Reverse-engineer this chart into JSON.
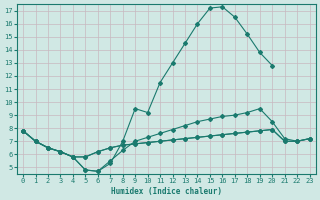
{
  "xlabel": "Humidex (Indice chaleur)",
  "bg_color": "#d0e8e4",
  "line_color": "#1a7a6e",
  "grid_color": "#c0d8d4",
  "xlim": [
    -0.5,
    23.5
  ],
  "ylim": [
    4.5,
    17.5
  ],
  "xticks": [
    0,
    1,
    2,
    3,
    4,
    5,
    6,
    7,
    8,
    9,
    10,
    11,
    12,
    13,
    14,
    15,
    16,
    17,
    18,
    19,
    20,
    21,
    22,
    23
  ],
  "yticks": [
    5,
    6,
    7,
    8,
    9,
    10,
    11,
    12,
    13,
    14,
    15,
    16,
    17
  ],
  "line1_x": [
    0,
    1,
    2,
    3,
    4,
    5,
    6,
    7,
    8,
    9,
    10,
    11,
    12,
    13,
    14,
    15,
    16,
    17,
    18,
    19,
    20
  ],
  "line1_y": [
    7.8,
    7.0,
    6.5,
    6.2,
    5.8,
    4.8,
    4.7,
    5.3,
    7.0,
    9.5,
    9.2,
    11.5,
    13.0,
    14.5,
    16.0,
    17.2,
    17.3,
    16.5,
    15.2,
    13.8,
    12.8
  ],
  "line2_x": [
    0,
    1,
    2,
    3,
    4,
    5,
    6,
    7,
    8,
    9,
    10,
    11,
    12,
    13,
    14,
    15,
    16,
    17,
    18,
    19,
    20,
    21,
    22,
    23
  ],
  "line2_y": [
    7.8,
    7.0,
    6.5,
    6.2,
    5.8,
    4.8,
    4.7,
    5.5,
    6.3,
    7.0,
    7.3,
    7.6,
    7.9,
    8.2,
    8.5,
    8.7,
    8.9,
    9.0,
    9.2,
    9.5,
    8.5,
    7.2,
    7.0,
    7.2
  ],
  "line3_x": [
    0,
    1,
    2,
    3,
    4,
    5,
    6,
    7,
    8,
    9,
    10,
    11,
    12,
    13,
    14,
    15,
    16,
    17,
    18,
    19,
    20,
    21,
    22,
    23
  ],
  "line3_y": [
    7.8,
    7.0,
    6.5,
    6.2,
    5.8,
    5.8,
    6.2,
    6.5,
    6.7,
    6.8,
    6.9,
    7.0,
    7.1,
    7.2,
    7.3,
    7.4,
    7.5,
    7.6,
    7.7,
    7.8,
    7.9,
    7.0,
    7.0,
    7.2
  ],
  "line4_x": [
    0,
    1,
    2,
    3,
    4,
    5,
    6,
    7,
    8,
    9,
    10,
    11,
    12,
    13,
    14,
    15,
    16,
    17,
    18,
    19,
    20,
    21,
    22,
    23
  ],
  "line4_y": [
    7.8,
    7.0,
    6.5,
    6.2,
    5.8,
    5.8,
    6.2,
    6.5,
    6.7,
    6.8,
    6.9,
    7.0,
    7.1,
    7.2,
    7.3,
    7.4,
    7.5,
    7.6,
    7.7,
    7.8,
    7.9,
    7.0,
    7.0,
    7.2
  ]
}
